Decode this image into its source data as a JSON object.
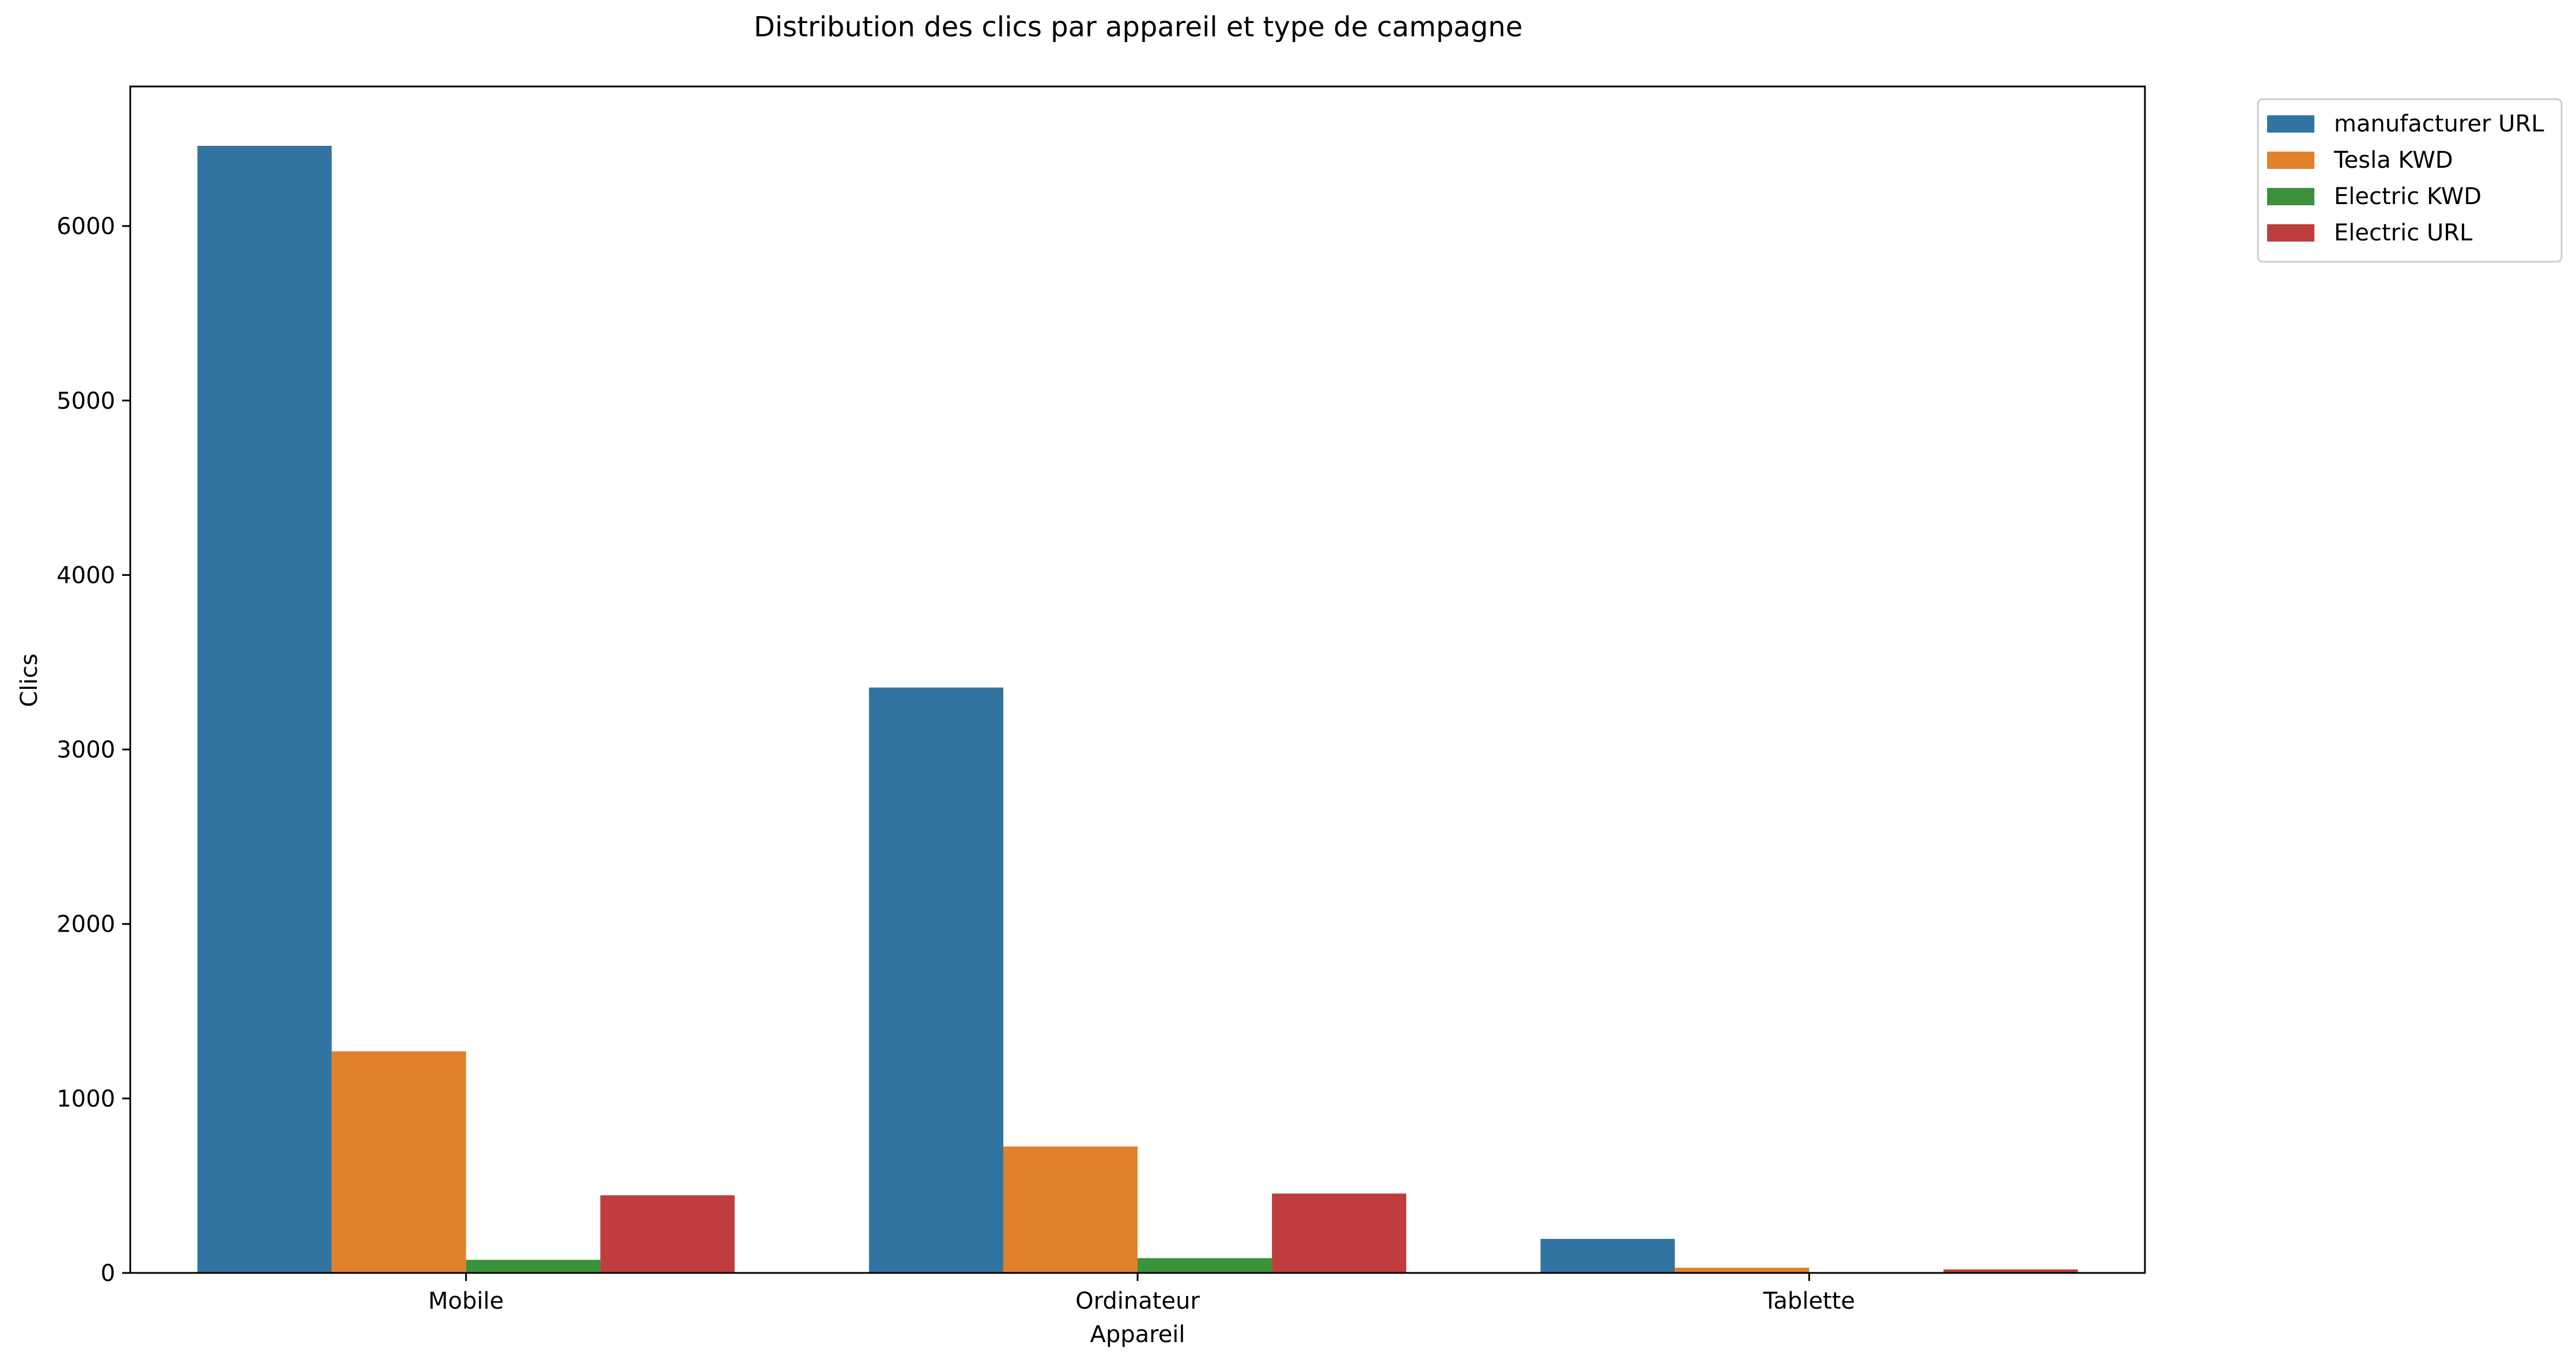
{
  "chart_data": {
    "type": "bar",
    "title": "Distribution des clics par appareil et type de campagne",
    "xlabel": "Appareil",
    "ylabel": "Clics",
    "categories": [
      "Mobile",
      "Ordinateur",
      "Tablette"
    ],
    "ylim": [
      0,
      6800
    ],
    "yticks": [
      0,
      1000,
      2000,
      3000,
      4000,
      5000,
      6000
    ],
    "grid": false,
    "legend_position": "outside-top-right",
    "series": [
      {
        "name": "manufacturer URL",
        "color": "#3274a1",
        "values": [
          6460,
          3355,
          195
        ]
      },
      {
        "name": "Tesla KWD",
        "color": "#e1812c",
        "values": [
          1270,
          725,
          30
        ]
      },
      {
        "name": "Electric KWD",
        "color": "#3a923a",
        "values": [
          75,
          85,
          0
        ]
      },
      {
        "name": "Electric URL",
        "color": "#c03d3e",
        "values": [
          445,
          455,
          20
        ]
      }
    ]
  }
}
